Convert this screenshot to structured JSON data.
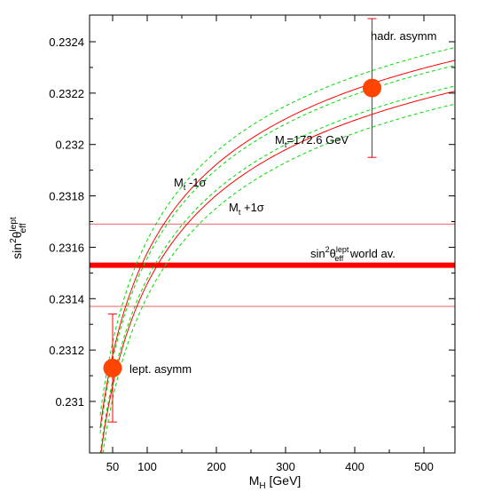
{
  "chart_data": {
    "type": "line",
    "xlabel_main": "M",
    "xlabel_sub": "H",
    "xlabel_unit": " [GeV]",
    "ylabel_base": "sin",
    "ylabel_sup1": "2",
    "ylabel_theta": "θ",
    "ylabel_sub": "eff",
    "ylabel_sup2": "lept",
    "xlim": [
      32,
      545
    ],
    "ylim": [
      0.2308,
      0.23255
    ],
    "x_ticks": [
      50,
      100,
      200,
      300,
      400,
      500
    ],
    "y_ticks": [
      0.231,
      0.2312,
      0.2314,
      0.2316,
      0.2318,
      0.232,
      0.2322,
      0.2324
    ],
    "series": [
      {
        "name": "M_t=172.6 GeV",
        "style": "solid-red",
        "x": [
          32,
          50,
          75,
          100,
          125,
          150,
          200,
          250,
          300,
          350,
          400,
          450,
          500,
          545
        ],
        "y": [
          0.2308,
          0.23113,
          0.2314,
          0.2316,
          0.23176,
          0.23189,
          0.23206,
          0.23218,
          0.23204,
          0.23214,
          0.23222,
          0.23228,
          0.23233,
          0.23237
        ]
      },
      {
        "name": "M_t -1σ",
        "style": "dashed-green",
        "x": [
          32,
          50,
          75,
          100,
          125,
          150,
          200,
          250,
          300,
          350,
          400,
          450,
          500,
          545
        ],
        "y": [
          0.23086,
          0.23118,
          0.23146,
          0.23166,
          0.23182,
          0.23195,
          0.23181,
          0.23194,
          0.23206,
          0.23217,
          0.23226,
          0.23233,
          0.23238,
          0.23242
        ]
      },
      {
        "name": "M_t +1σ",
        "style": "dashed-green",
        "x": [
          32,
          50,
          75,
          100,
          125,
          150,
          200,
          250,
          300,
          350,
          400,
          450,
          500,
          545
        ],
        "y": [
          0.23074,
          0.23108,
          0.23134,
          0.23154,
          0.2317,
          0.23183,
          0.2317,
          0.23183,
          0.23195,
          0.23205,
          0.23214,
          0.23221,
          0.23227,
          0.23232
        ]
      }
    ],
    "world_average": {
      "value": 0.23153,
      "band": [
        0.23137,
        0.23169
      ]
    },
    "points": [
      {
        "name": "lept. asymm",
        "x": 50,
        "y": 0.23113,
        "err_low": 0.23092,
        "err_high": 0.23134
      },
      {
        "name": "hadr. asymm",
        "x": 425,
        "y": 0.23222,
        "err_low": 0.23195,
        "err_high": 0.23249
      }
    ],
    "labels": {
      "mt_central": "M",
      "mt_central_sub": "t",
      "mt_central_rest": "=172.6 GeV",
      "mt_minus_main": "M",
      "mt_minus_sub": "t",
      "mt_minus_rest": " -1σ",
      "mt_plus_main": "M",
      "mt_plus_sub": "t",
      "mt_plus_rest": " +1σ",
      "wa_base": "sin",
      "wa_sup1": "2",
      "wa_theta": "θ",
      "wa_sub": "eff",
      "wa_sup2": "lept",
      "wa_rest": " world av.",
      "lept": "lept. asymm",
      "hadr": "hadr. asymm"
    },
    "colors": {
      "red": "#ff0000",
      "salmon": "#f08080",
      "green": "#00dd00",
      "orange": "#ff4500"
    },
    "grid": false,
    "legend": "none"
  }
}
